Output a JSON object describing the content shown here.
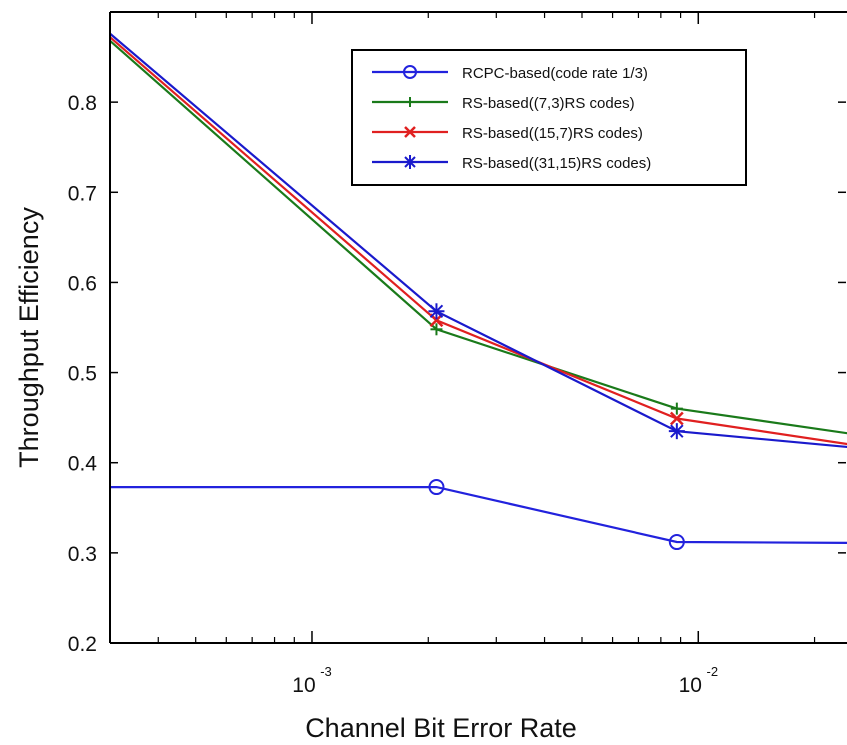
{
  "chart_data": {
    "type": "line",
    "title": "",
    "xlabel": "Channel Bit Error Rate",
    "ylabel": "Throughput Efficiency",
    "xscale": "log",
    "xlim": [
      0.0003,
      0.025
    ],
    "ylim": [
      0.2,
      0.9
    ],
    "grid": false,
    "legend_position": "top-right",
    "yticks": [
      {
        "value": 0.2,
        "label": "0.2"
      },
      {
        "value": 0.3,
        "label": "0.3"
      },
      {
        "value": 0.4,
        "label": "0.4"
      },
      {
        "value": 0.5,
        "label": "0.5"
      },
      {
        "value": 0.6,
        "label": "0.6"
      },
      {
        "value": 0.7,
        "label": "0.7"
      },
      {
        "value": 0.8,
        "label": "0.8"
      }
    ],
    "xticks": [
      {
        "value": 0.001,
        "base": "10",
        "exp": "-3"
      },
      {
        "value": 0.01,
        "base": "10",
        "exp": "-2"
      }
    ],
    "series": [
      {
        "name": "RCPC-based(code rate 1/3)",
        "color": "#2222dd",
        "marker": "circle",
        "x": [
          0.0003,
          0.0021,
          0.0088,
          0.025
        ],
        "y": [
          0.373,
          0.373,
          0.312,
          0.311
        ],
        "marker_x": [
          0.0021,
          0.0088
        ]
      },
      {
        "name": "RS-based((7,3)RS codes)",
        "color": "#1a7a1a",
        "marker": "plus",
        "x": [
          0.0003,
          0.0021,
          0.0088,
          0.025
        ],
        "y": [
          0.868,
          0.548,
          0.46,
          0.432
        ],
        "marker_x": [
          0.0021,
          0.0088
        ]
      },
      {
        "name": "RS-based((15,7)RS codes)",
        "color": "#e02020",
        "marker": "x",
        "x": [
          0.0003,
          0.0021,
          0.0088,
          0.025
        ],
        "y": [
          0.872,
          0.558,
          0.449,
          0.42
        ],
        "marker_x": [
          0.0021,
          0.0088
        ]
      },
      {
        "name": "RS-based((31,15)RS codes)",
        "color": "#1a1acc",
        "marker": "star",
        "x": [
          0.0003,
          0.0021,
          0.0088,
          0.025
        ],
        "y": [
          0.876,
          0.568,
          0.435,
          0.417
        ],
        "marker_x": [
          0.0021,
          0.0088
        ]
      }
    ]
  }
}
